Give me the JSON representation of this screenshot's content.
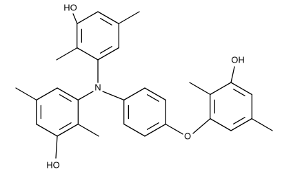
{
  "labels": {
    "top_hydroxyl": "HO",
    "amine": "N",
    "bottom_hydroxyl": "HO",
    "ether": "O",
    "right_hydroxyl": "OH"
  }
}
